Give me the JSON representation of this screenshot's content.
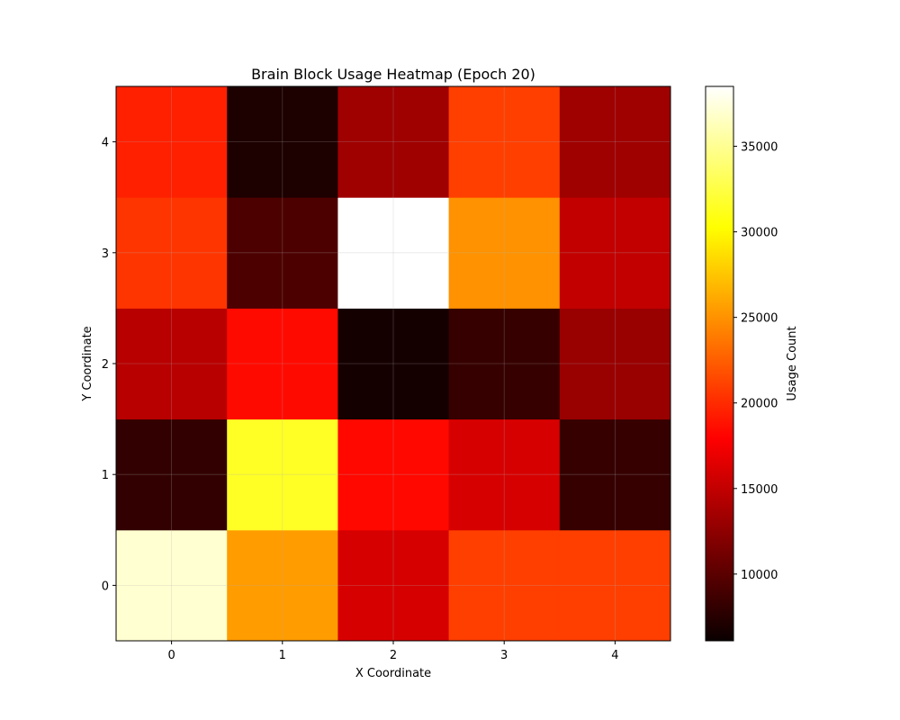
{
  "chart_data": {
    "type": "heatmap",
    "title": "Brain Block Usage Heatmap (Epoch 20)",
    "xlabel": "X Coordinate",
    "ylabel": "Y Coordinate",
    "x": [
      0,
      1,
      2,
      3,
      4
    ],
    "y": [
      0,
      1,
      2,
      3,
      4
    ],
    "xlim": [
      -0.5,
      4.5
    ],
    "ylim": [
      -0.5,
      4.5
    ],
    "values": [
      [
        37000,
        25500,
        16000,
        21000,
        21000
      ],
      [
        8000,
        31500,
        18300,
        16000,
        8200
      ],
      [
        14500,
        18400,
        6600,
        8200,
        13000
      ],
      [
        20500,
        9300,
        38500,
        25000,
        15000
      ],
      [
        19500,
        7000,
        13300,
        21000,
        13300
      ]
    ],
    "grid": true,
    "colormap": "hot",
    "colorbar": {
      "label": "Usage Count",
      "min": 6100,
      "max": 38500,
      "ticks": [
        10000,
        15000,
        20000,
        25000,
        30000,
        35000
      ]
    }
  }
}
